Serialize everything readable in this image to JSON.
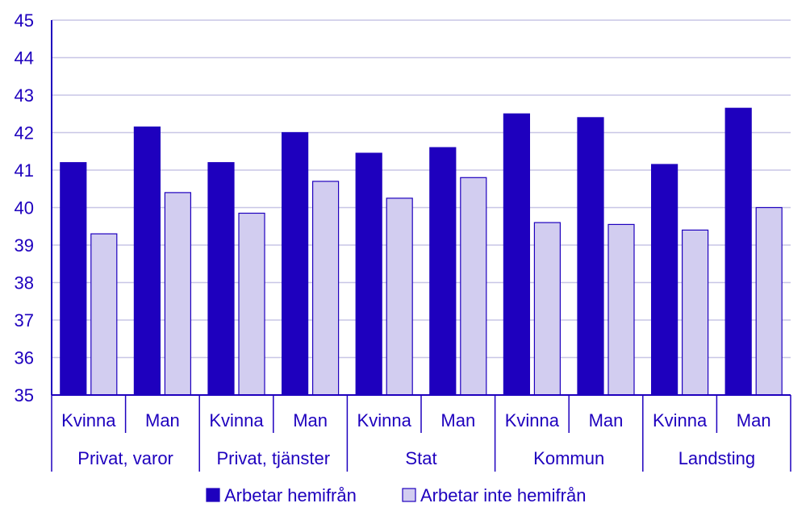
{
  "chart_data": {
    "type": "bar",
    "groups": [
      "Privat, varor",
      "Privat, tjänster",
      "Stat",
      "Kommun",
      "Landsting"
    ],
    "subcategories": [
      "Kvinna",
      "Man"
    ],
    "series": [
      {
        "name": "Arbetar hemifrån",
        "color": "#1e00be",
        "values": [
          41.2,
          42.15,
          41.2,
          42.0,
          41.45,
          41.6,
          42.5,
          42.4,
          41.15,
          42.65
        ]
      },
      {
        "name": "Arbetar inte hemifrån",
        "color": "#d2cdf0",
        "values": [
          39.3,
          40.4,
          39.85,
          40.7,
          40.25,
          40.8,
          39.6,
          39.55,
          39.4,
          40.0
        ]
      }
    ],
    "ylim": [
      35,
      45
    ],
    "yticks": [
      35,
      36,
      37,
      38,
      39,
      40,
      41,
      42,
      43,
      44,
      45
    ],
    "grid": true,
    "legend": "bottom"
  }
}
